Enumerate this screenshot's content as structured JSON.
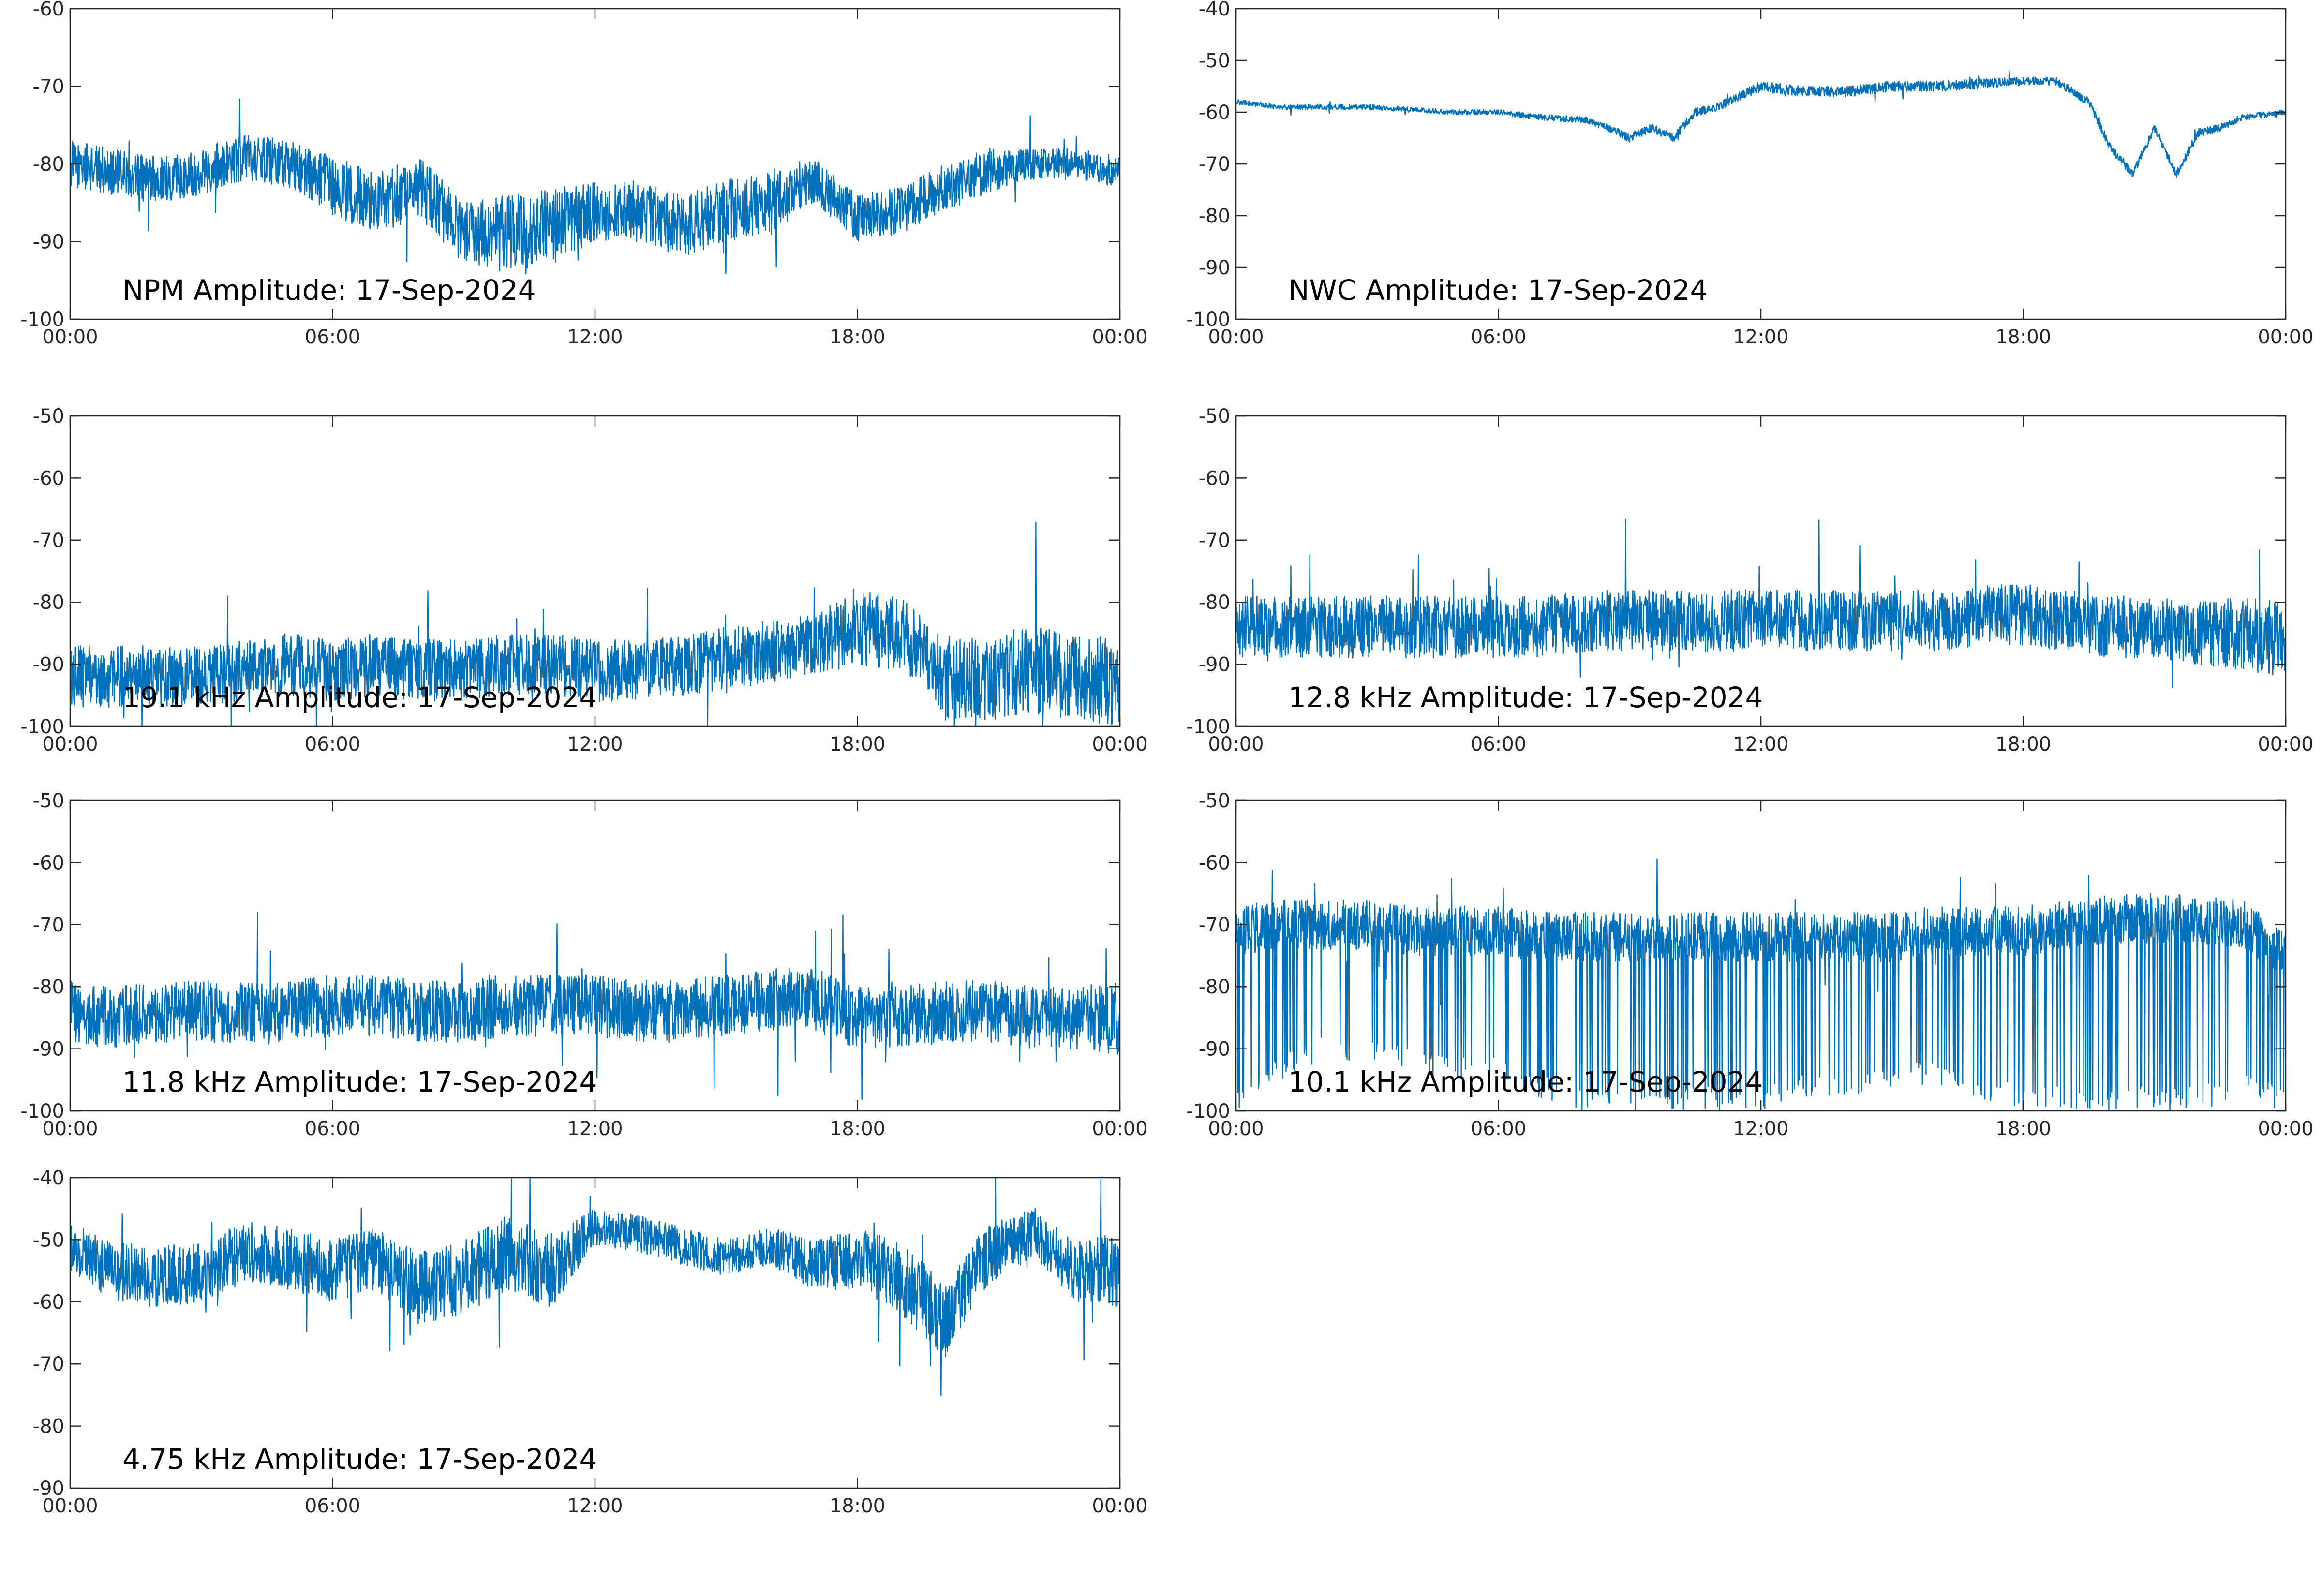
{
  "chart_data": [
    {
      "type": "line",
      "title": "NPM Amplitude: 17-Sep-2024",
      "series_color": "#0072BD",
      "xlim": [
        "00:00",
        "24:00"
      ],
      "xticks": [
        "00:00",
        "06:00",
        "12:00",
        "18:00",
        "00:00"
      ],
      "ylim": [
        -100,
        -60
      ],
      "yticks": [
        "-60",
        "-70",
        "-80",
        "-90",
        "-100"
      ],
      "grid": false,
      "x": [
        "00:00",
        "01:00",
        "02:00",
        "03:00",
        "04:00",
        "05:00",
        "06:00",
        "07:00",
        "08:00",
        "09:00",
        "10:00",
        "11:00",
        "12:00",
        "13:00",
        "14:00",
        "15:00",
        "16:00",
        "17:00",
        "18:00",
        "19:00",
        "20:00",
        "21:00",
        "22:00",
        "23:00",
        "24:00"
      ],
      "baseline": [
        -80,
        -81,
        -82,
        -81,
        -79,
        -80,
        -83,
        -85,
        -83,
        -89,
        -89,
        -88,
        -86,
        -86,
        -88,
        -86,
        -85,
        -82,
        -87,
        -86,
        -83,
        -81,
        -80,
        -80,
        -81
      ],
      "noise": [
        3,
        3,
        3,
        3,
        3,
        3,
        4,
        4,
        4,
        4,
        5,
        5,
        4,
        4,
        4,
        4,
        4,
        3,
        3,
        3,
        3,
        3,
        2,
        2,
        2
      ]
    },
    {
      "type": "line",
      "title": "NWC Amplitude: 17-Sep-2024",
      "series_color": "#0072BD",
      "xlim": [
        "00:00",
        "24:00"
      ],
      "xticks": [
        "00:00",
        "06:00",
        "12:00",
        "18:00",
        "00:00"
      ],
      "ylim": [
        -100,
        -40
      ],
      "yticks": [
        "-40",
        "-50",
        "-60",
        "-70",
        "-80",
        "-90",
        "-100"
      ],
      "grid": false,
      "x": [
        "00:00",
        "01:00",
        "02:00",
        "03:00",
        "04:00",
        "05:00",
        "06:00",
        "07:00",
        "08:00",
        "08:30",
        "09:00",
        "09:30",
        "10:00",
        "10:30",
        "11:00",
        "11:30",
        "12:00",
        "13:00",
        "14:00",
        "15:00",
        "16:00",
        "17:00",
        "18:00",
        "18:45",
        "19:30",
        "20:00",
        "20:30",
        "21:00",
        "21:30",
        "22:00",
        "22:30",
        "23:00",
        "24:00"
      ],
      "baseline": [
        -58,
        -59,
        -59,
        -59,
        -59.5,
        -60,
        -60,
        -61,
        -61.5,
        -63,
        -65,
        -63,
        -65,
        -60,
        -59,
        -57,
        -55,
        -56,
        -56,
        -55,
        -55,
        -54.5,
        -54,
        -54,
        -58,
        -67,
        -72,
        -63,
        -72,
        -64,
        -63,
        -61,
        -60
      ],
      "noise": [
        0.5,
        0.5,
        0.5,
        0.5,
        0.5,
        0.5,
        0.5,
        0.6,
        0.6,
        0.8,
        0.8,
        0.8,
        0.8,
        0.8,
        0.8,
        0.9,
        1,
        1,
        1,
        1,
        1,
        1,
        0.8,
        0.8,
        0.8,
        0.8,
        0.8,
        0.8,
        0.8,
        0.8,
        0.8,
        0.6,
        0.5
      ]
    },
    {
      "type": "line",
      "title": "19.1 kHz Amplitude: 17-Sep-2024",
      "series_color": "#0072BD",
      "xlim": [
        "00:00",
        "24:00"
      ],
      "xticks": [
        "00:00",
        "06:00",
        "12:00",
        "18:00",
        "00:00"
      ],
      "ylim": [
        -100,
        -50
      ],
      "yticks": [
        "-50",
        "-60",
        "-70",
        "-80",
        "-90",
        "-100"
      ],
      "grid": false,
      "x": [
        "00:00",
        "01:00",
        "02:00",
        "03:00",
        "04:00",
        "05:00",
        "06:00",
        "07:00",
        "08:00",
        "09:00",
        "10:00",
        "11:00",
        "12:00",
        "13:00",
        "14:00",
        "15:00",
        "16:00",
        "17:00",
        "18:00",
        "19:00",
        "20:00",
        "21:00",
        "22:00",
        "23:00",
        "24:00"
      ],
      "baseline": [
        -92,
        -92,
        -92,
        -92,
        -91,
        -90,
        -91,
        -90,
        -91,
        -91,
        -90,
        -90,
        -91,
        -91,
        -90,
        -89,
        -88,
        -87,
        -84,
        -85,
        -92,
        -92,
        -91,
        -92,
        -93
      ],
      "noise": [
        5,
        5,
        5,
        5,
        5,
        5,
        5,
        5,
        5,
        5,
        5,
        5,
        5,
        5,
        5,
        5,
        5,
        5,
        6,
        6,
        7,
        7,
        7,
        7,
        7
      ]
    },
    {
      "type": "line",
      "title": "12.8 kHz Amplitude: 17-Sep-2024",
      "series_color": "#0072BD",
      "xlim": [
        "00:00",
        "24:00"
      ],
      "xticks": [
        "00:00",
        "06:00",
        "12:00",
        "18:00",
        "00:00"
      ],
      "ylim": [
        -100,
        -50
      ],
      "yticks": [
        "-50",
        "-60",
        "-70",
        "-80",
        "-90",
        "-100"
      ],
      "grid": false,
      "x": [
        "00:00",
        "01:00",
        "02:00",
        "03:00",
        "04:00",
        "05:00",
        "06:00",
        "07:00",
        "08:00",
        "09:00",
        "10:00",
        "11:00",
        "12:00",
        "13:00",
        "14:00",
        "15:00",
        "16:00",
        "17:00",
        "18:00",
        "19:00",
        "20:00",
        "21:00",
        "22:00",
        "23:00",
        "24:00"
      ],
      "baseline": [
        -84,
        -84,
        -84,
        -84,
        -84,
        -84,
        -84,
        -84,
        -83,
        -83,
        -83,
        -83,
        -83,
        -83,
        -83,
        -83,
        -83,
        -82,
        -82,
        -83,
        -84,
        -84,
        -85,
        -85,
        -86
      ],
      "noise": [
        5,
        5,
        5,
        5,
        5,
        5,
        5,
        5,
        5,
        5,
        5,
        5,
        5,
        5,
        5,
        5,
        5,
        5,
        5,
        5,
        5,
        5,
        5,
        6,
        6
      ]
    },
    {
      "type": "line",
      "title": "11.8 kHz Amplitude: 17-Sep-2024",
      "series_color": "#0072BD",
      "xlim": [
        "00:00",
        "24:00"
      ],
      "xticks": [
        "00:00",
        "06:00",
        "12:00",
        "18:00",
        "00:00"
      ],
      "ylim": [
        -100,
        -50
      ],
      "yticks": [
        "-50",
        "-60",
        "-70",
        "-80",
        "-90",
        "-100"
      ],
      "grid": false,
      "x": [
        "00:00",
        "01:00",
        "02:00",
        "03:00",
        "04:00",
        "05:00",
        "06:00",
        "07:00",
        "08:00",
        "09:00",
        "10:00",
        "11:00",
        "12:00",
        "13:00",
        "14:00",
        "15:00",
        "16:00",
        "17:00",
        "18:00",
        "19:00",
        "20:00",
        "21:00",
        "22:00",
        "23:00",
        "24:00"
      ],
      "baseline": [
        -84,
        -85,
        -84,
        -84,
        -84,
        -84,
        -83,
        -83,
        -84,
        -84,
        -83,
        -83,
        -83,
        -84,
        -84,
        -83,
        -82,
        -82,
        -85,
        -85,
        -84,
        -84,
        -85,
        -85,
        -85
      ],
      "noise": [
        5,
        5,
        5,
        5,
        5,
        5,
        5,
        5,
        5,
        5,
        5,
        5,
        5,
        5,
        5,
        5,
        5,
        5,
        5,
        5,
        5,
        5,
        5,
        5,
        6
      ]
    },
    {
      "type": "line",
      "title": "10.1 kHz Amplitude: 17-Sep-2024",
      "series_color": "#0072BD",
      "xlim": [
        "00:00",
        "24:00"
      ],
      "xticks": [
        "00:00",
        "06:00",
        "12:00",
        "18:00",
        "00:00"
      ],
      "ylim": [
        -100,
        -50
      ],
      "yticks": [
        "-50",
        "-60",
        "-70",
        "-80",
        "-90",
        "-100"
      ],
      "grid": false,
      "x": [
        "00:00",
        "01:00",
        "02:00",
        "03:00",
        "04:00",
        "05:00",
        "06:00",
        "07:00",
        "08:00",
        "09:00",
        "10:00",
        "11:00",
        "12:00",
        "13:00",
        "14:00",
        "15:00",
        "16:00",
        "17:00",
        "18:00",
        "19:00",
        "20:00",
        "21:00",
        "22:00",
        "23:00",
        "24:00"
      ],
      "baseline": [
        -71,
        -70,
        -70,
        -70,
        -71,
        -71,
        -71,
        -72,
        -72,
        -72,
        -72,
        -72,
        -72,
        -72,
        -72,
        -72,
        -71,
        -71,
        -71,
        -70,
        -69,
        -69,
        -69,
        -70,
        -75
      ],
      "noise": [
        4,
        4,
        4,
        4,
        4,
        4,
        4,
        4,
        4,
        4,
        4,
        4,
        4,
        4,
        4,
        4,
        4,
        4,
        4,
        4,
        4,
        4,
        4,
        4,
        4
      ],
      "dropout_depth": [
        -100,
        -95,
        -92,
        -92,
        -94,
        -95,
        -95,
        -98,
        -100,
        -100,
        -100,
        -100,
        -100,
        -98,
        -98,
        -96,
        -96,
        -98,
        -100,
        -100,
        -100,
        -100,
        -100,
        -98,
        -100
      ]
    },
    {
      "type": "line",
      "title": "4.75 kHz Amplitude: 17-Sep-2024",
      "series_color": "#0072BD",
      "xlim": [
        "00:00",
        "24:00"
      ],
      "xticks": [
        "00:00",
        "06:00",
        "12:00",
        "18:00",
        "00:00"
      ],
      "ylim": [
        -90,
        -40
      ],
      "yticks": [
        "-40",
        "-50",
        "-60",
        "-70",
        "-80",
        "-90"
      ],
      "grid": false,
      "x": [
        "00:00",
        "01:00",
        "02:00",
        "03:00",
        "04:00",
        "05:00",
        "06:00",
        "07:00",
        "08:00",
        "09:00",
        "10:00",
        "11:00",
        "12:00",
        "13:00",
        "14:00",
        "15:00",
        "16:00",
        "17:00",
        "18:00",
        "19:00",
        "20:00",
        "21:00",
        "22:00",
        "23:00",
        "24:00"
      ],
      "baseline": [
        -51,
        -55,
        -56,
        -55,
        -52,
        -53,
        -55,
        -53,
        -58,
        -56,
        -52,
        -55,
        -48,
        -49,
        -51,
        -53,
        -51,
        -54,
        -53,
        -56,
        -63,
        -52,
        -49,
        -55,
        -55
      ],
      "noise": [
        4,
        5,
        5,
        5,
        5,
        5,
        5,
        5,
        6,
        6,
        6,
        6,
        3,
        3,
        3,
        3,
        3,
        4,
        5,
        6,
        6,
        5,
        4,
        5,
        6
      ]
    }
  ]
}
